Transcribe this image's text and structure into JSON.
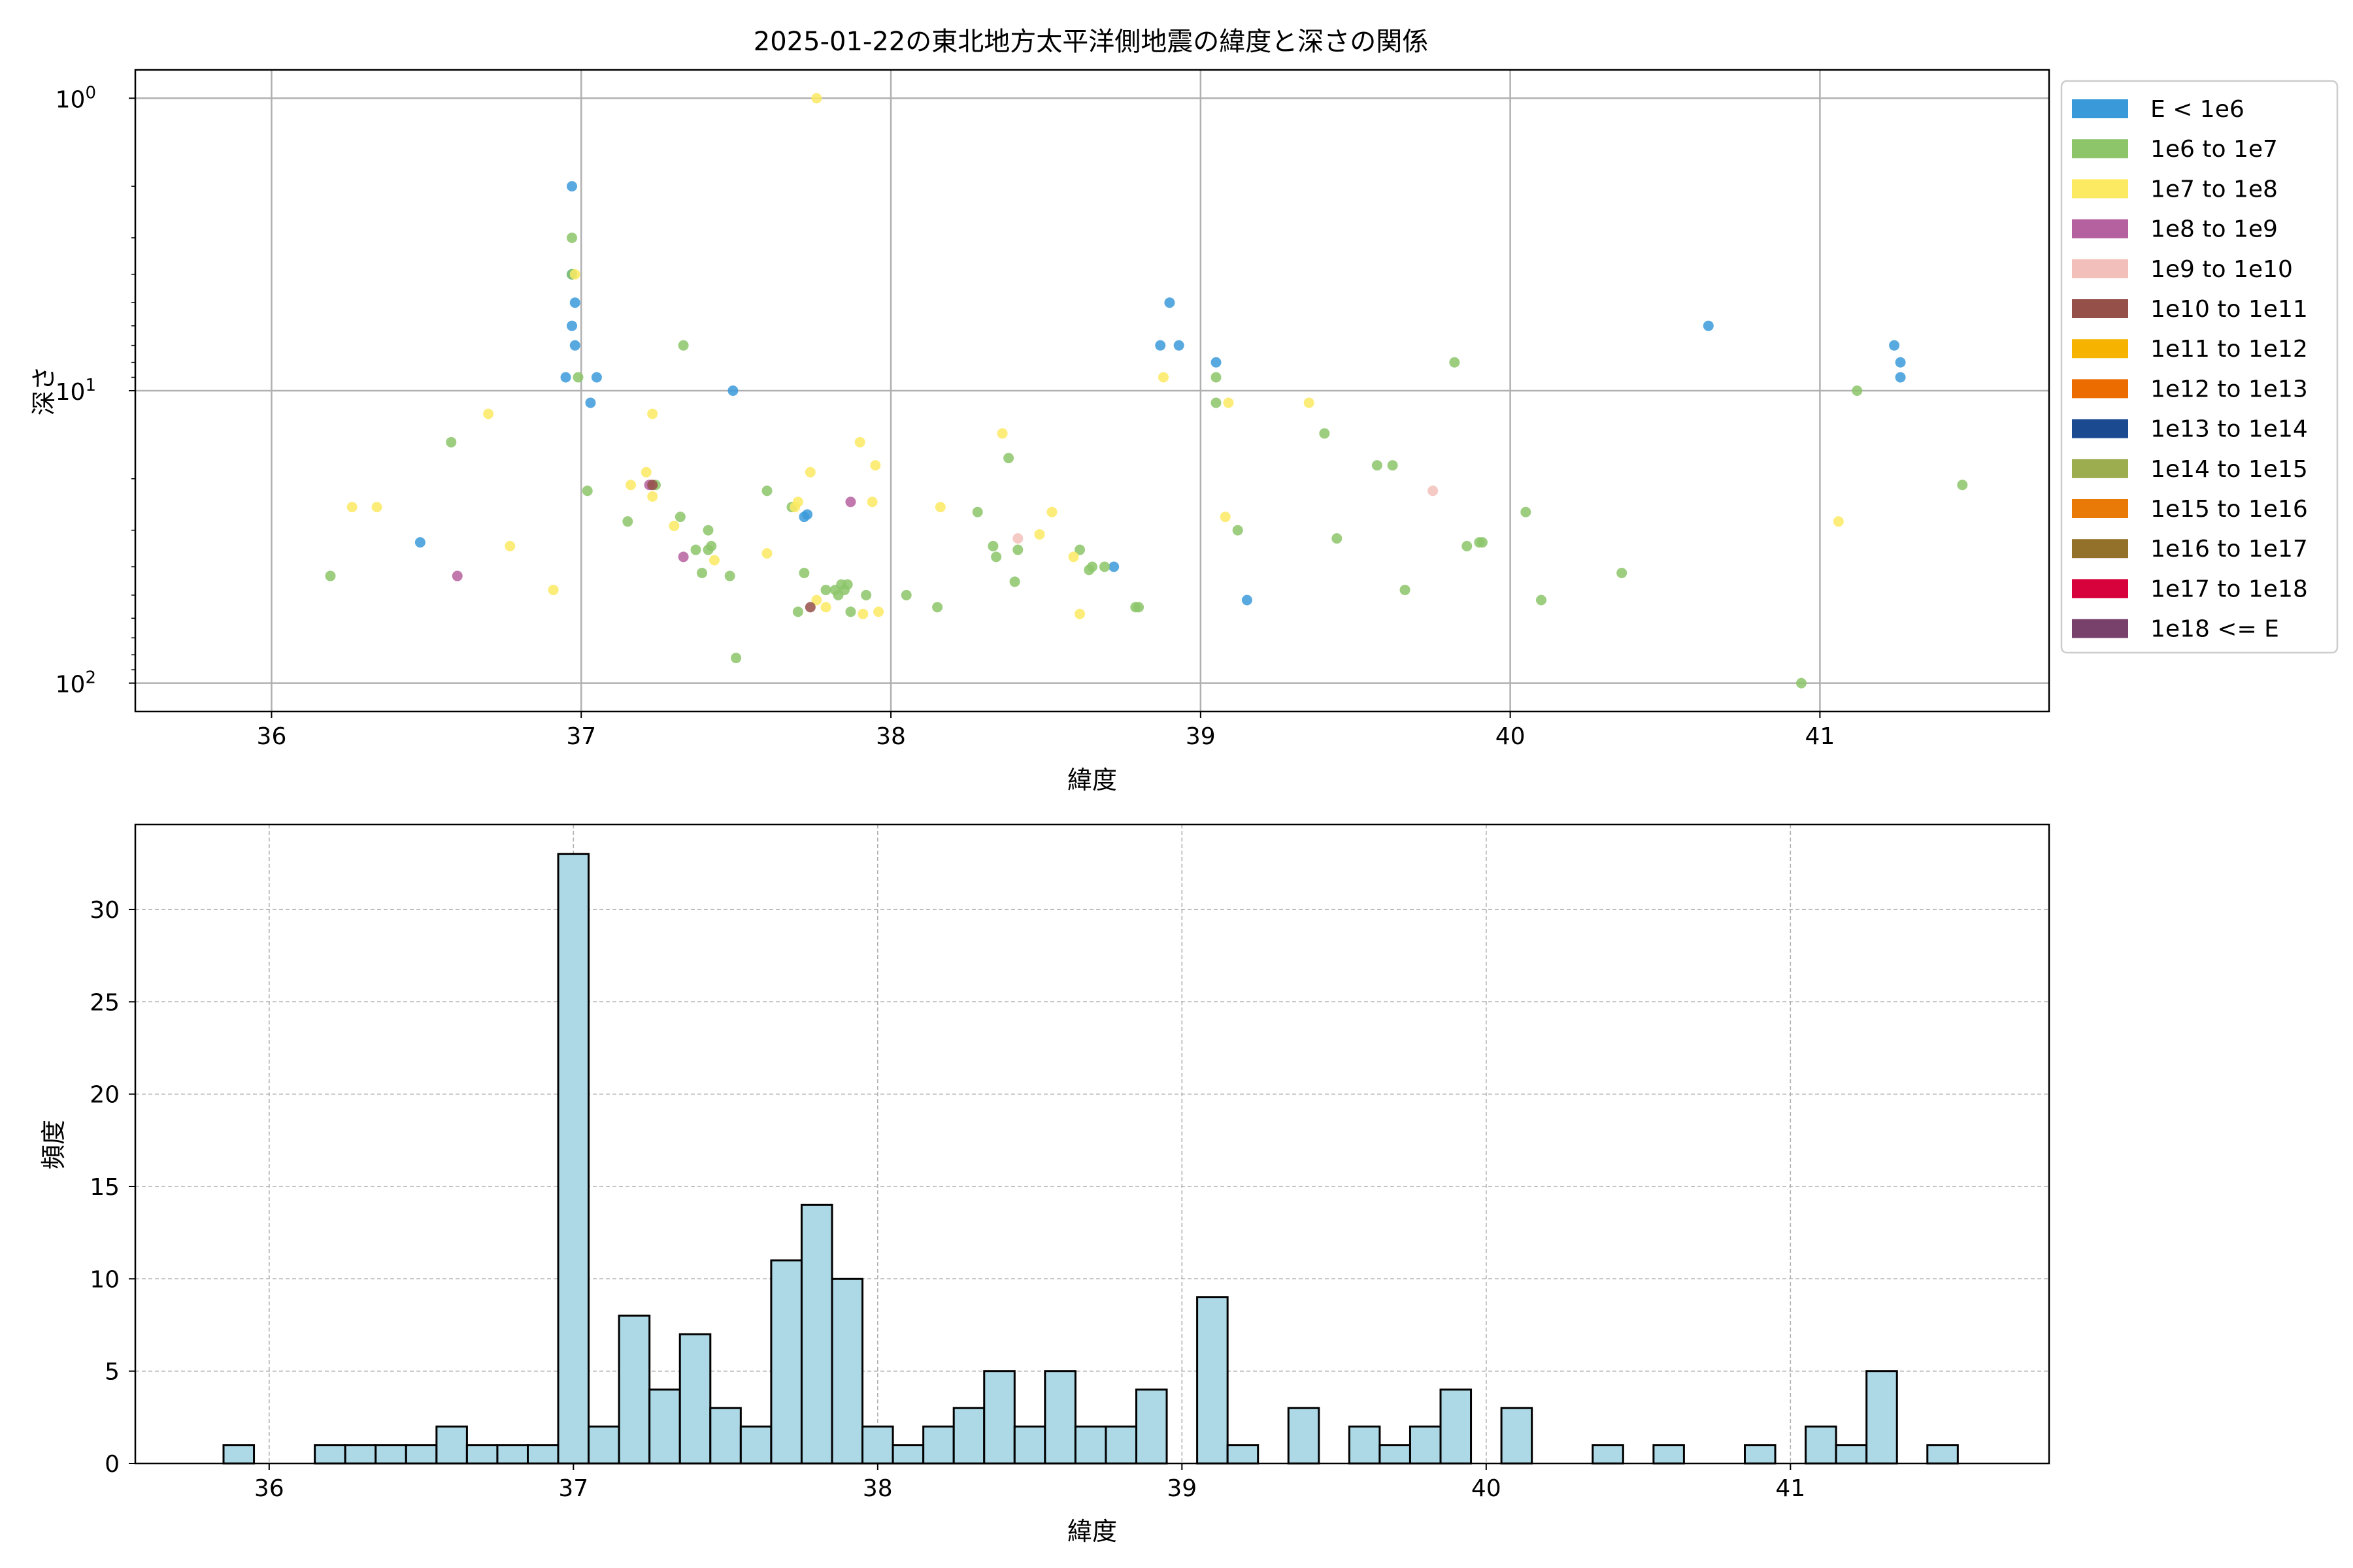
{
  "figure": {
    "title": "2025-01-22の東北地方太平洋側地震の緯度と深さの関係"
  },
  "chart_data": [
    {
      "type": "scatter",
      "title": "2025-01-22の東北地方太平洋側地震の緯度と深さの関係",
      "xlabel": "緯度",
      "ylabel": "深さ",
      "xlim": [
        35.56,
        41.74
      ],
      "ylim": [
        125,
        0.8
      ],
      "y_scale": "log",
      "y_inverted": true,
      "x_ticks": [
        36,
        37,
        38,
        39,
        40,
        41
      ],
      "y_ticks": [
        {
          "value": 1,
          "label": "10",
          "exp": "0"
        },
        {
          "value": 10,
          "label": "10",
          "exp": "1"
        },
        {
          "value": 100,
          "label": "10",
          "exp": "2"
        }
      ],
      "grid": true,
      "legend_position": "outside-right",
      "legend": [
        {
          "label": "E < 1e6",
          "color": "#3a9ad9"
        },
        {
          "label": "1e6 to 1e7",
          "color": "#8cc56a"
        },
        {
          "label": "1e7 to 1e8",
          "color": "#fcea63"
        },
        {
          "label": "1e8 to 1e9",
          "color": "#b5609f"
        },
        {
          "label": "1e9 to 1e10",
          "color": "#f3bfba"
        },
        {
          "label": "1e10 to 1e11",
          "color": "#955049"
        },
        {
          "label": "1e11 to 1e12",
          "color": "#f6b300"
        },
        {
          "label": "1e12 to 1e13",
          "color": "#ed6c00"
        },
        {
          "label": "1e13 to 1e14",
          "color": "#1c4a91"
        },
        {
          "label": "1e14 to 1e15",
          "color": "#9bad4e"
        },
        {
          "label": "1e15 to 1e16",
          "color": "#ea7a07"
        },
        {
          "label": "1e16 to 1e17",
          "color": "#94712b"
        },
        {
          "label": "1e17 to 1e18",
          "color": "#d7023c"
        },
        {
          "label": "1e18 <= E",
          "color": "#77416b"
        }
      ],
      "series": [
        {
          "name": "E < 1e6",
          "points": [
            [
              36.97,
              2.0
            ],
            [
              36.97,
              4.0
            ],
            [
              36.97,
              4.0
            ],
            [
              36.98,
              5.0
            ],
            [
              36.97,
              6.0
            ],
            [
              36.98,
              7.0
            ],
            [
              36.95,
              9.0
            ],
            [
              37.05,
              9.0
            ],
            [
              37.03,
              11.0
            ],
            [
              36.48,
              33.0
            ],
            [
              37.49,
              10.0
            ],
            [
              37.72,
              27.0
            ],
            [
              37.73,
              26.5
            ],
            [
              38.9,
              5.0
            ],
            [
              38.87,
              7.0
            ],
            [
              38.93,
              7.0
            ],
            [
              39.05,
              8.0
            ],
            [
              39.15,
              52.0
            ],
            [
              38.72,
              40.0
            ],
            [
              40.64,
              6.0
            ],
            [
              41.24,
              7.0
            ],
            [
              41.26,
              8.0
            ],
            [
              41.26,
              9.0
            ]
          ]
        },
        {
          "name": "1e6 to 1e7",
          "points": [
            [
              36.97,
              3.0
            ],
            [
              36.97,
              4.0
            ],
            [
              36.99,
              9.0
            ],
            [
              36.19,
              43.0
            ],
            [
              36.58,
              15.0
            ],
            [
              37.02,
              22.0
            ],
            [
              37.15,
              28.0
            ],
            [
              37.24,
              21.0
            ],
            [
              37.32,
              27.0
            ],
            [
              37.33,
              7.0
            ],
            [
              37.37,
              35.0
            ],
            [
              37.39,
              42.0
            ],
            [
              37.41,
              35.0
            ],
            [
              37.42,
              34.0
            ],
            [
              37.41,
              30.0
            ],
            [
              37.48,
              43.0
            ],
            [
              37.5,
              82.0
            ],
            [
              37.6,
              22.0
            ],
            [
              37.68,
              25.0
            ],
            [
              37.7,
              57.0
            ],
            [
              37.72,
              42.0
            ],
            [
              37.79,
              48.0
            ],
            [
              37.82,
              48.0
            ],
            [
              37.83,
              50.0
            ],
            [
              37.84,
              46.0
            ],
            [
              37.85,
              48.0
            ],
            [
              37.86,
              46.0
            ],
            [
              37.87,
              57.0
            ],
            [
              37.92,
              50.0
            ],
            [
              38.05,
              50.0
            ],
            [
              38.15,
              55.0
            ],
            [
              38.28,
              26.0
            ],
            [
              38.33,
              34.0
            ],
            [
              38.34,
              37.0
            ],
            [
              38.38,
              17.0
            ],
            [
              38.4,
              45.0
            ],
            [
              38.41,
              35.0
            ],
            [
              38.61,
              35.0
            ],
            [
              38.64,
              41.0
            ],
            [
              38.65,
              40.0
            ],
            [
              38.69,
              40.0
            ],
            [
              38.79,
              55.0
            ],
            [
              38.8,
              55.0
            ],
            [
              39.05,
              9.0
            ],
            [
              39.05,
              11.0
            ],
            [
              39.12,
              30.0
            ],
            [
              39.4,
              14.0
            ],
            [
              39.44,
              32.0
            ],
            [
              39.57,
              18.0
            ],
            [
              39.62,
              18.0
            ],
            [
              39.66,
              48.0
            ],
            [
              39.82,
              8.0
            ],
            [
              39.86,
              34.0
            ],
            [
              39.9,
              33.0
            ],
            [
              39.91,
              33.0
            ],
            [
              40.05,
              26.0
            ],
            [
              40.1,
              52.0
            ],
            [
              40.36,
              42.0
            ],
            [
              40.94,
              100.0
            ],
            [
              41.12,
              10.0
            ],
            [
              41.46,
              21.0
            ]
          ]
        },
        {
          "name": "1e7 to 1e8",
          "points": [
            [
              36.98,
              4.0
            ],
            [
              36.26,
              25.0
            ],
            [
              36.34,
              25.0
            ],
            [
              36.7,
              12.0
            ],
            [
              36.77,
              34.0
            ],
            [
              36.91,
              48.0
            ],
            [
              37.16,
              21.0
            ],
            [
              37.21,
              19.0
            ],
            [
              37.23,
              23.0
            ],
            [
              37.23,
              12.0
            ],
            [
              37.3,
              29.0
            ],
            [
              37.43,
              38.0
            ],
            [
              37.6,
              36.0
            ],
            [
              37.69,
              25.0
            ],
            [
              37.7,
              24.0
            ],
            [
              37.74,
              19.0
            ],
            [
              37.76,
              1.0
            ],
            [
              37.76,
              52.0
            ],
            [
              37.79,
              55.0
            ],
            [
              37.9,
              15.0
            ],
            [
              37.91,
              58.0
            ],
            [
              37.94,
              24.0
            ],
            [
              37.95,
              18.0
            ],
            [
              37.96,
              57.0
            ],
            [
              38.16,
              25.0
            ],
            [
              38.36,
              14.0
            ],
            [
              38.48,
              31.0
            ],
            [
              38.52,
              26.0
            ],
            [
              38.59,
              37.0
            ],
            [
              38.61,
              58.0
            ],
            [
              38.88,
              9.0
            ],
            [
              39.08,
              27.0
            ],
            [
              39.09,
              11.0
            ],
            [
              39.35,
              11.0
            ],
            [
              41.06,
              28.0
            ]
          ]
        },
        {
          "name": "1e8 to 1e9",
          "points": [
            [
              36.6,
              43.0
            ],
            [
              37.22,
              21.0
            ],
            [
              37.33,
              37.0
            ],
            [
              37.87,
              24.0
            ]
          ]
        },
        {
          "name": "1e9 to 1e10",
          "points": [
            [
              38.41,
              32.0
            ],
            [
              39.75,
              22.0
            ]
          ]
        },
        {
          "name": "1e10 to 1e11",
          "points": [
            [
              37.23,
              21.0
            ],
            [
              37.74,
              55.0
            ]
          ]
        }
      ]
    },
    {
      "type": "bar",
      "subtype": "histogram",
      "xlabel": "緯度",
      "ylabel": "頻度",
      "xlim": [
        35.56,
        41.85
      ],
      "ylim": [
        0,
        34.6
      ],
      "x_ticks": [
        36,
        37,
        38,
        39,
        40,
        41
      ],
      "y_ticks": [
        0,
        5,
        10,
        15,
        20,
        25,
        30
      ],
      "grid": true,
      "bar_color": "#add8e6",
      "edge_color": "#000000",
      "bin_width": 0.1,
      "bins_start": 35.85,
      "values": [
        1,
        0,
        0,
        1,
        1,
        1,
        1,
        2,
        1,
        1,
        1,
        33,
        2,
        8,
        4,
        7,
        3,
        2,
        11,
        14,
        10,
        2,
        1,
        2,
        3,
        5,
        2,
        5,
        2,
        2,
        4,
        0,
        9,
        1,
        0,
        3,
        0,
        2,
        1,
        2,
        4,
        0,
        3,
        0,
        0,
        1,
        0,
        1,
        0,
        0,
        1,
        0,
        2,
        1,
        5,
        0,
        1
      ]
    }
  ]
}
